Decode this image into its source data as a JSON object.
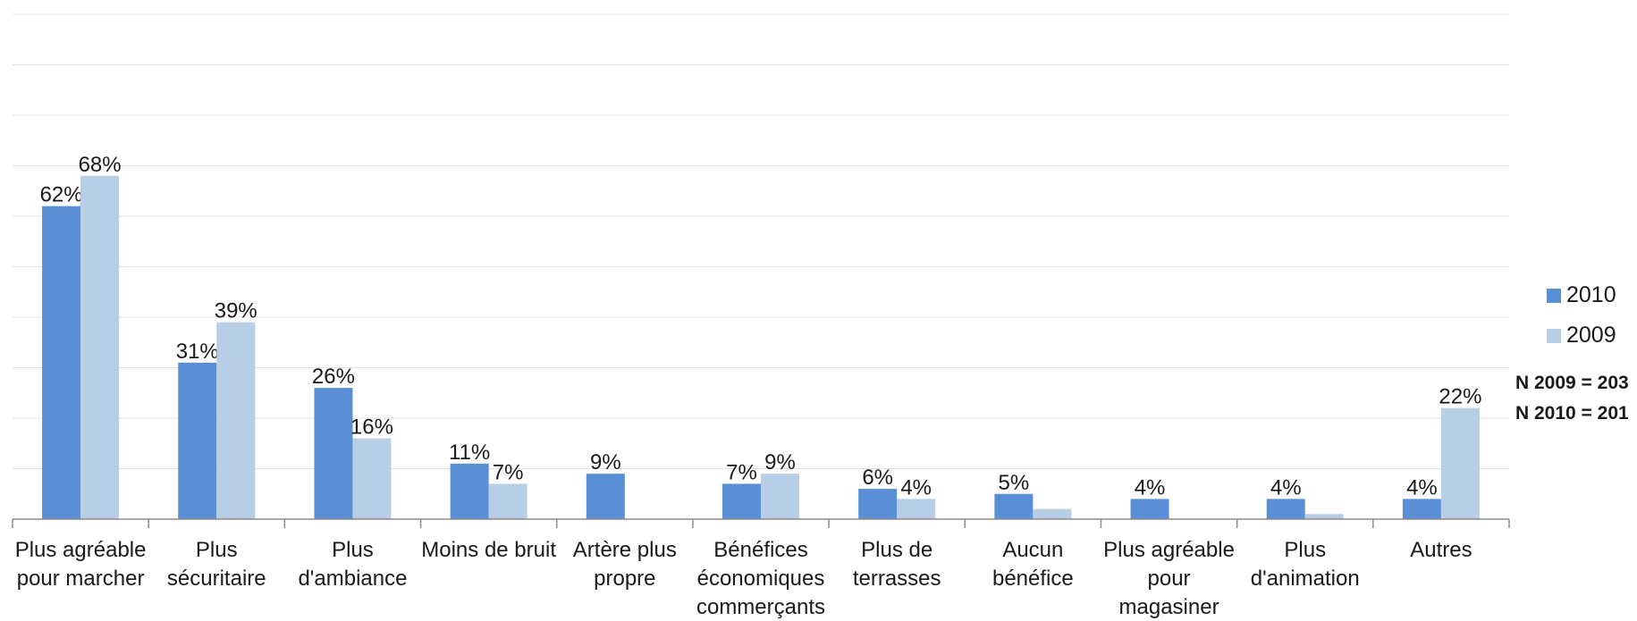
{
  "chart_data": {
    "type": "bar",
    "categories": [
      [
        "Plus agréable",
        "pour marcher"
      ],
      [
        "Plus",
        "sécuritaire"
      ],
      [
        "Plus",
        "d'ambiance"
      ],
      [
        "Moins de bruit"
      ],
      [
        "Artère plus",
        "propre"
      ],
      [
        "Bénéfices",
        "économiques",
        "commerçants"
      ],
      [
        "Plus de",
        "terrasses"
      ],
      [
        "Aucun",
        "bénéfice"
      ],
      [
        "Plus agréable",
        "pour",
        "magasiner"
      ],
      [
        "Plus",
        "d'animation"
      ],
      [
        "Autres"
      ]
    ],
    "series": [
      {
        "name": "2010",
        "color": "#5a8fd6",
        "values": [
          62,
          31,
          26,
          11,
          9,
          7,
          6,
          5,
          4,
          4,
          4
        ],
        "labels": [
          "62%",
          "31%",
          "26%",
          "11%",
          "9%",
          "7%",
          "6%",
          "5%",
          "4%",
          "4%",
          "4%"
        ]
      },
      {
        "name": "2009",
        "color": "#b8cde6",
        "values": [
          68,
          39,
          16,
          7,
          0,
          9,
          4,
          2,
          0,
          1,
          22
        ],
        "labels": [
          "68%",
          "39%",
          "16%",
          "7%",
          "",
          "9%",
          "4%",
          "",
          "",
          "",
          "22%"
        ]
      }
    ],
    "ylim": [
      0,
      100
    ],
    "gridlines": true,
    "legend_position": "right"
  },
  "notes": [
    "N 2009 = 203",
    "N 2010 = 201"
  ]
}
